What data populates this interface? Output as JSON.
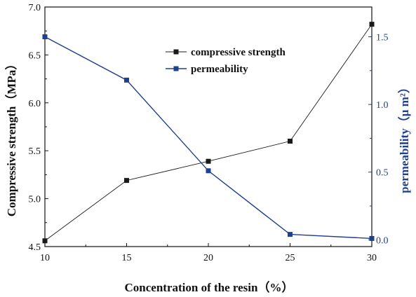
{
  "chart_data": {
    "type": "line",
    "xlabel": "Concentration of the resin（%）",
    "ylabel_left": "Compressive strength（MPa）",
    "ylabel_right": "permeability（μ m²）",
    "xlim": [
      10,
      30
    ],
    "ylim_left": [
      4.5,
      7.0
    ],
    "ylim_right": [
      -0.05,
      1.72
    ],
    "x_ticks": [
      "10",
      "15",
      "20",
      "25",
      "30"
    ],
    "y_ticks_left": [
      "4.5",
      "5.0",
      "5.5",
      "6.0",
      "6.5",
      "7.0"
    ],
    "y_ticks_right": [
      "0.0",
      "0.5",
      "1.0",
      "1.5"
    ],
    "legend_position": "top-center",
    "grid": false,
    "series": [
      {
        "name": "compressive strength",
        "axis": "left",
        "color": "#1a1a1a",
        "x": [
          10,
          15,
          20,
          25,
          30
        ],
        "values": [
          4.56,
          5.19,
          5.39,
          5.6,
          6.82
        ]
      },
      {
        "name": "permeability",
        "axis": "right",
        "color": "#1f3f8f",
        "x": [
          10,
          15,
          20,
          25,
          30
        ],
        "values": [
          1.5,
          1.18,
          0.51,
          0.04,
          0.01
        ]
      }
    ]
  }
}
